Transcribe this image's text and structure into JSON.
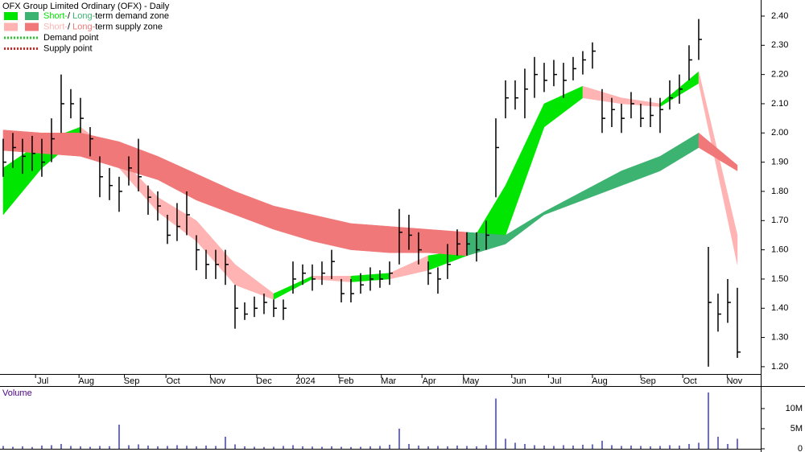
{
  "chart_data": [
    {
      "type": "ohlc",
      "title": "OFX Group Limited Ordinary (OFX) - Daily",
      "x": [
        0,
        1,
        2,
        3,
        4,
        5,
        6,
        7,
        8,
        9,
        10,
        11,
        12,
        13,
        14,
        15,
        16,
        17,
        18,
        19,
        20,
        21,
        22,
        23,
        24,
        25,
        26,
        27,
        28,
        29,
        30,
        31,
        32,
        33,
        34,
        35,
        36,
        37,
        38,
        39,
        40,
        41,
        42,
        43,
        44,
        45,
        46,
        47,
        48,
        49,
        50,
        51,
        52,
        53,
        54,
        55,
        56,
        57,
        58,
        59,
        60,
        61,
        62,
        63,
        64,
        65,
        66,
        67,
        68,
        69,
        70,
        71,
        72,
        73,
        74,
        75,
        76
      ],
      "high": [
        1.98,
        2.0,
        1.98,
        1.99,
        1.98,
        2.05,
        2.2,
        2.15,
        2.12,
        2.02,
        1.92,
        1.88,
        1.85,
        1.92,
        1.98,
        1.82,
        1.8,
        1.72,
        1.76,
        1.8,
        1.65,
        1.6,
        1.6,
        1.6,
        1.48,
        1.42,
        1.44,
        1.45,
        1.43,
        1.43,
        1.56,
        1.55,
        1.55,
        1.56,
        1.6,
        1.5,
        1.5,
        1.52,
        1.54,
        1.53,
        1.56,
        1.74,
        1.72,
        1.66,
        1.56,
        1.54,
        1.62,
        1.67,
        1.66,
        1.66,
        1.7,
        2.05,
        2.18,
        2.18,
        2.22,
        2.26,
        2.24,
        2.25,
        2.24,
        2.26,
        2.28,
        2.31,
        2.15,
        2.12,
        2.1,
        2.14,
        2.1,
        2.12,
        2.12,
        2.18,
        2.2,
        2.3,
        2.39,
        1.61,
        1.45,
        1.5,
        1.47
      ],
      "low": [
        1.85,
        1.88,
        1.86,
        1.87,
        1.85,
        1.9,
        2.0,
        2.05,
        2.0,
        1.92,
        1.78,
        1.77,
        1.73,
        1.82,
        1.8,
        1.72,
        1.7,
        1.62,
        1.63,
        1.65,
        1.53,
        1.5,
        1.5,
        1.48,
        1.33,
        1.36,
        1.37,
        1.38,
        1.37,
        1.36,
        1.45,
        1.48,
        1.46,
        1.48,
        1.5,
        1.42,
        1.42,
        1.45,
        1.46,
        1.47,
        1.48,
        1.55,
        1.6,
        1.55,
        1.48,
        1.45,
        1.5,
        1.58,
        1.58,
        1.56,
        1.6,
        1.78,
        2.05,
        2.08,
        2.05,
        2.12,
        2.14,
        2.16,
        2.12,
        2.18,
        2.2,
        2.22,
        2.0,
        2.02,
        2.0,
        2.05,
        2.02,
        2.02,
        2.0,
        2.08,
        2.1,
        2.18,
        2.25,
        1.2,
        1.32,
        1.35,
        1.23
      ],
      "close": [
        1.9,
        1.95,
        1.92,
        1.93,
        1.9,
        1.98,
        2.1,
        2.1,
        2.05,
        1.98,
        1.85,
        1.82,
        1.8,
        1.88,
        1.85,
        1.78,
        1.75,
        1.65,
        1.68,
        1.72,
        1.6,
        1.55,
        1.55,
        1.55,
        1.4,
        1.38,
        1.4,
        1.42,
        1.4,
        1.4,
        1.5,
        1.52,
        1.5,
        1.52,
        1.56,
        1.45,
        1.45,
        1.48,
        1.5,
        1.5,
        1.52,
        1.66,
        1.65,
        1.6,
        1.52,
        1.5,
        1.55,
        1.62,
        1.62,
        1.6,
        1.65,
        1.95,
        2.12,
        2.12,
        2.15,
        2.2,
        2.18,
        2.2,
        2.18,
        2.22,
        2.25,
        2.28,
        2.05,
        2.08,
        2.05,
        2.1,
        2.05,
        2.06,
        2.08,
        2.12,
        2.15,
        2.25,
        2.32,
        1.42,
        1.38,
        1.42,
        1.25
      ],
      "bar_color": "#000000",
      "zones": [
        {
          "x": [
            0,
            4,
            8,
            12,
            16,
            20,
            24,
            28,
            32,
            36,
            40,
            44,
            48,
            52,
            56,
            60,
            64,
            68,
            72,
            76
          ],
          "upper": [
            1.88,
            1.97,
            2.02,
            1.92,
            1.78,
            1.7,
            1.55,
            1.45,
            1.51,
            1.51,
            1.52,
            1.58,
            1.6,
            1.82,
            2.1,
            2.16,
            2.12,
            2.1,
            2.21,
            1.65
          ],
          "lower": [
            1.72,
            1.88,
            1.99,
            1.88,
            1.73,
            1.63,
            1.48,
            1.43,
            1.5,
            1.49,
            1.5,
            1.53,
            1.58,
            1.65,
            2.02,
            2.12,
            2.1,
            2.09,
            2.17,
            1.55
          ],
          "state": [
            "demand",
            "demand",
            "demand",
            "supply",
            "supply",
            "supply",
            "supply",
            "supply",
            "demand",
            "supply",
            "demand",
            "supply",
            "demand",
            "demand",
            "demand",
            "demand",
            "supply",
            "supply",
            "demand",
            "supply"
          ],
          "demand_color": "#00e600",
          "supply_color": "#ffb3b3"
        },
        {
          "x": [
            0,
            4,
            8,
            12,
            16,
            20,
            24,
            28,
            32,
            36,
            40,
            44,
            48,
            52,
            56,
            60,
            64,
            68,
            72,
            76
          ],
          "upper": [
            2.01,
            2.0,
            2.0,
            1.97,
            1.92,
            1.86,
            1.8,
            1.75,
            1.72,
            1.69,
            1.68,
            1.67,
            1.66,
            1.65,
            1.73,
            1.8,
            1.87,
            1.92,
            2.0,
            1.89
          ],
          "lower": [
            1.94,
            1.93,
            1.92,
            1.88,
            1.84,
            1.77,
            1.72,
            1.67,
            1.63,
            1.6,
            1.59,
            1.59,
            1.58,
            1.62,
            1.72,
            1.77,
            1.82,
            1.87,
            1.95,
            1.87
          ],
          "state": [
            "supply",
            "supply",
            "supply",
            "supply",
            "supply",
            "supply",
            "supply",
            "supply",
            "supply",
            "supply",
            "supply",
            "supply",
            "supply",
            "demand",
            "demand",
            "demand",
            "demand",
            "demand",
            "demand",
            "supply"
          ],
          "demand_color": "#3cb371",
          "supply_color": "#f07878"
        }
      ],
      "legend": [
        {
          "parts": [
            "Short-",
            "/ ",
            "Long-",
            "term demand zone"
          ]
        },
        {
          "parts": [
            "Short-",
            "/ ",
            "Long-",
            "term supply zone"
          ]
        },
        {
          "label": "Demand point",
          "color": "#22cc22"
        },
        {
          "label": "Supply point",
          "color": "#dd2222"
        }
      ],
      "xlim": [
        -0.33,
        78.42
      ],
      "xticks": [
        {
          "value": 4.1,
          "label": "Jul"
        },
        {
          "value": 8.6,
          "label": "Aug"
        },
        {
          "value": 13.3,
          "label": "Sep"
        },
        {
          "value": 17.6,
          "label": "Oct"
        },
        {
          "value": 22.2,
          "label": "Nov"
        },
        {
          "value": 27,
          "label": "Dec"
        },
        {
          "value": 31.3,
          "label": "2024"
        },
        {
          "value": 35.5,
          "label": "Feb"
        },
        {
          "value": 39.9,
          "label": "Mar"
        },
        {
          "value": 44.1,
          "label": "Apr"
        },
        {
          "value": 48.4,
          "label": "May"
        },
        {
          "value": 53.4,
          "label": "Jun"
        },
        {
          "value": 57.2,
          "label": "Jul"
        },
        {
          "value": 61.75,
          "label": "Aug"
        },
        {
          "value": 66.75,
          "label": "Sep"
        },
        {
          "value": 71.1,
          "label": "Oct"
        },
        {
          "value": 75.7,
          "label": "Nov"
        }
      ],
      "ylim": [
        1.175,
        2.455
      ],
      "yticks": [
        {
          "value": 1.2,
          "label": "1.20"
        },
        {
          "value": 1.3,
          "label": "1.30"
        },
        {
          "value": 1.4,
          "label": "1.40"
        },
        {
          "value": 1.5,
          "label": "1.50"
        },
        {
          "value": 1.6,
          "label": "1.60"
        },
        {
          "value": 1.7,
          "label": "1.70"
        },
        {
          "value": 1.8,
          "label": "1.80"
        },
        {
          "value": 1.9,
          "label": "1.90"
        },
        {
          "value": 2.0,
          "label": "2.00"
        },
        {
          "value": 2.1,
          "label": "2.10"
        },
        {
          "value": 2.2,
          "label": "2.20"
        },
        {
          "value": 2.3,
          "label": "2.30"
        },
        {
          "value": 2.4,
          "label": "2.40"
        }
      ]
    },
    {
      "type": "bar",
      "title": "Volume",
      "color": "#6a6ad0",
      "x": [
        0,
        1,
        2,
        3,
        4,
        5,
        6,
        7,
        8,
        9,
        10,
        11,
        12,
        13,
        14,
        15,
        16,
        17,
        18,
        19,
        20,
        21,
        22,
        23,
        24,
        25,
        26,
        27,
        28,
        29,
        30,
        31,
        32,
        33,
        34,
        35,
        36,
        37,
        38,
        39,
        40,
        41,
        42,
        43,
        44,
        45,
        46,
        47,
        48,
        49,
        50,
        51,
        52,
        53,
        54,
        55,
        56,
        57,
        58,
        59,
        60,
        61,
        62,
        63,
        64,
        65,
        66,
        67,
        68,
        69,
        70,
        71,
        72,
        73,
        74,
        75,
        76
      ],
      "values": [
        700000,
        500000,
        600000,
        450000,
        800000,
        900000,
        1200000,
        700000,
        600000,
        500000,
        700000,
        650000,
        6000000,
        900000,
        1100000,
        800000,
        600000,
        700000,
        900000,
        750000,
        600000,
        800000,
        700000,
        3000000,
        1100000,
        600000,
        500000,
        450000,
        500000,
        700000,
        900000,
        600000,
        550000,
        500000,
        600000,
        500000,
        450000,
        500000,
        600000,
        700000,
        1000000,
        5000000,
        1200000,
        800000,
        600000,
        700000,
        600000,
        800000,
        700000,
        600000,
        900000,
        12500000,
        2500000,
        1500000,
        1200000,
        900000,
        800000,
        700000,
        900000,
        800000,
        1000000,
        1100000,
        2000000,
        900000,
        700000,
        800000,
        700000,
        600000,
        700000,
        900000,
        800000,
        1200000,
        1500000,
        14000000,
        3000000,
        1200000,
        2500000
      ],
      "xlim": [
        -0.33,
        78.42
      ],
      "ylim": [
        0,
        15000000
      ],
      "yticks": [
        0,
        {
          "value": 5000000,
          "label": "5M"
        },
        {
          "value": 10000000,
          "label": "10M"
        }
      ]
    }
  ]
}
